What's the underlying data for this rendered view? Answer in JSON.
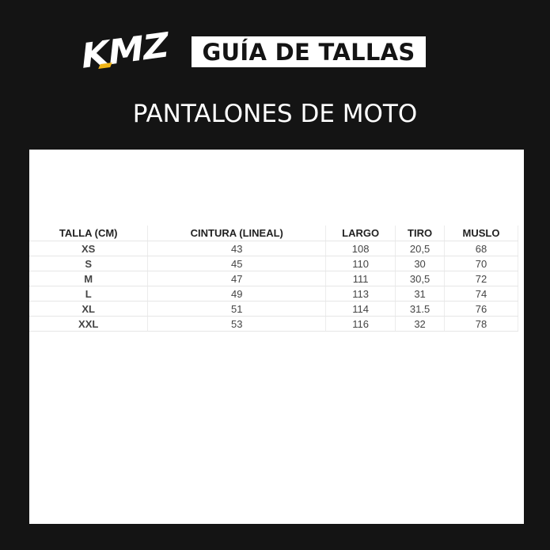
{
  "brand": {
    "logo_text": "KMZ",
    "accent_color": "#f2b617"
  },
  "header": {
    "title": "GUÍA DE TALLAS",
    "subtitle": "PANTALONES DE MOTO"
  },
  "table": {
    "columns": [
      "TALLA (CM)",
      "CINTURA (LINEAL)",
      "LARGO",
      "TIRO",
      "MUSLO"
    ],
    "rows": [
      [
        "XS",
        "43",
        "108",
        "20,5",
        "68"
      ],
      [
        "S",
        "45",
        "110",
        "30",
        "70"
      ],
      [
        "M",
        "47",
        "111",
        "30,5",
        "72"
      ],
      [
        "L",
        "49",
        "113",
        "31",
        "74"
      ],
      [
        "XL",
        "51",
        "114",
        "31.5",
        "76"
      ],
      [
        "XXL",
        "53",
        "116",
        "32",
        "78"
      ]
    ]
  }
}
